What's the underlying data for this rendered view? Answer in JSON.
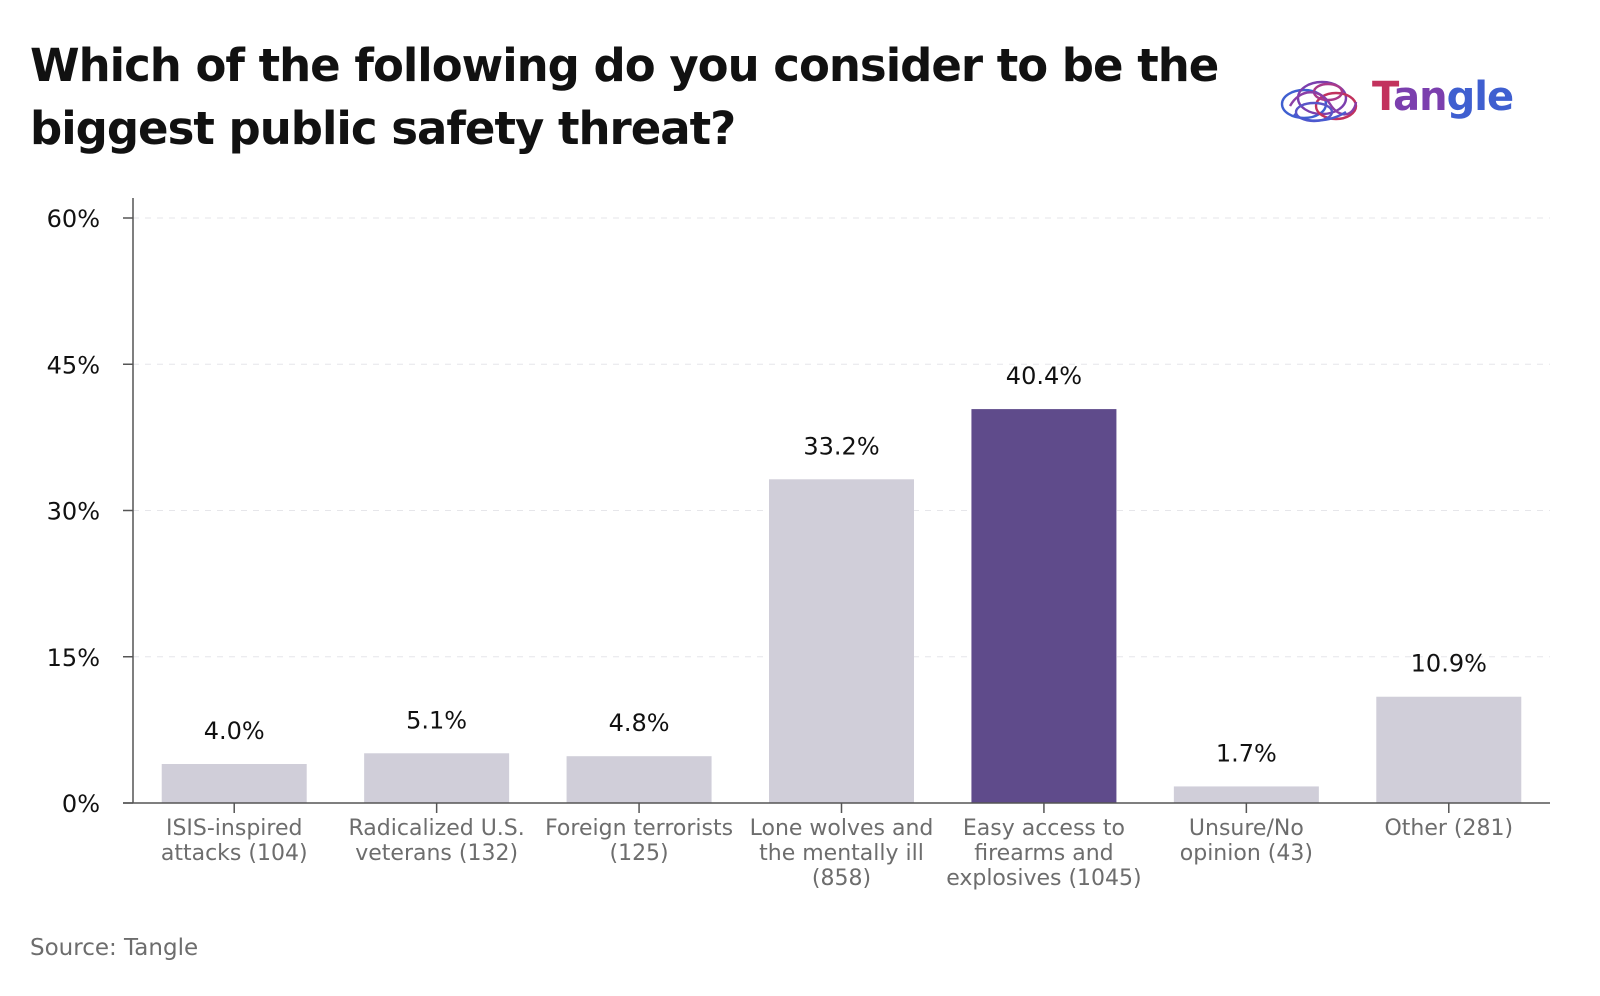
{
  "chart_data": {
    "type": "bar",
    "title": "Which of the following do you consider to be the biggest public safety threat?",
    "categories": [
      [
        "ISIS-inspired",
        "attacks (104)"
      ],
      [
        "Radicalized U.S.",
        "veterans (132)"
      ],
      [
        "Foreign terrorists",
        "(125)"
      ],
      [
        "Lone wolves and",
        "the mentally ill",
        "(858)"
      ],
      [
        "Easy access to",
        "firearms and",
        "explosives (1045)"
      ],
      [
        "Unsure/No",
        "opinion (43)"
      ],
      [
        "Other (281)"
      ]
    ],
    "values": [
      4.0,
      5.1,
      4.8,
      33.2,
      40.4,
      1.7,
      10.9
    ],
    "value_labels": [
      "4.0%",
      "5.1%",
      "4.8%",
      "33.2%",
      "40.4%",
      "1.7%",
      "10.9%"
    ],
    "highlight_index": 4,
    "colors": {
      "bar": "#d0ced9",
      "highlight": "#5f4b8b",
      "grid": "#e6e6ea",
      "axis": "#555555"
    },
    "yticks": [
      0,
      15,
      30,
      45,
      60
    ],
    "ytick_labels": [
      "0%",
      "15%",
      "30%",
      "45%",
      "60%"
    ],
    "ylim": [
      0,
      60
    ],
    "grid": true,
    "legend": "none"
  },
  "source": "Source: Tangle",
  "logo": {
    "name": "Tangle",
    "icon": "brain-tangle-icon"
  }
}
